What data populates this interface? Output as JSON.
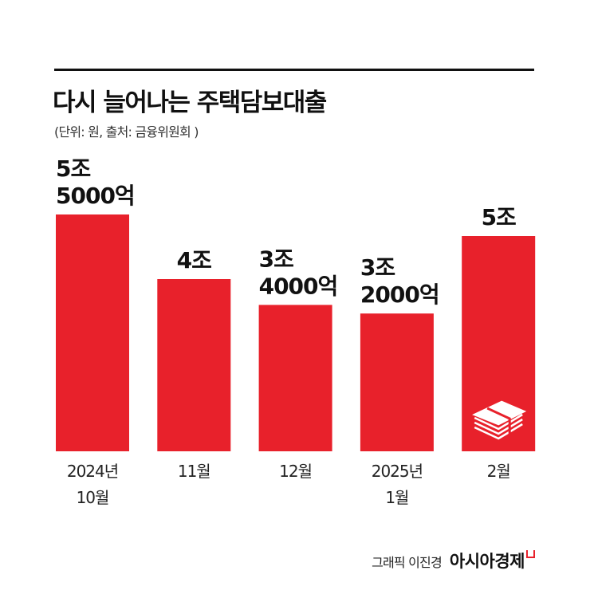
{
  "title": "다시 늘어나는 주택담보대출",
  "subtitle": "(단위: 원, 출처: 금융위원회 )",
  "credit": "그래픽 이진경",
  "brand": "아시아경제",
  "colors": {
    "bar": "#e8212b",
    "text": "#111111"
  },
  "chart_data": {
    "type": "bar",
    "title": "다시 늘어나는 주택담보대출",
    "categories": [
      [
        "2024년",
        "10월"
      ],
      [
        "11월"
      ],
      [
        "12월"
      ],
      [
        "2025년",
        "1월"
      ],
      [
        "2월"
      ]
    ],
    "values": [
      5.5,
      4.0,
      3.4,
      3.2,
      5.0
    ],
    "unit": "조원",
    "data_labels": [
      [
        "5조",
        "5000억"
      ],
      [
        "4조"
      ],
      [
        "3조",
        "4000억"
      ],
      [
        "3조",
        "2000억"
      ],
      [
        "5조"
      ]
    ],
    "ylim": [
      0,
      5.5
    ],
    "grid": false,
    "legend": "none",
    "icon": "money-stack-icon on last bar"
  }
}
